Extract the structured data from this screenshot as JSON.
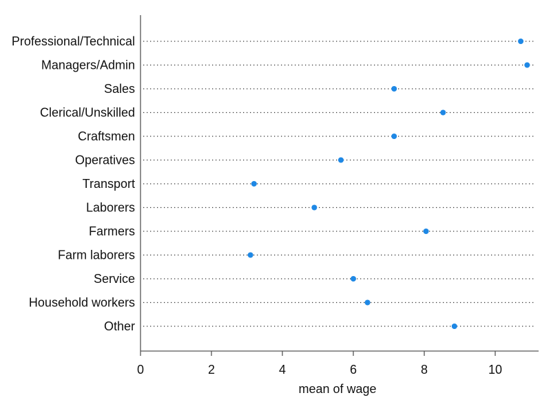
{
  "chart_data": {
    "type": "scatter",
    "title": "",
    "xlabel": "mean of wage",
    "ylabel": "",
    "xlim": [
      0,
      11.2
    ],
    "xticks": [
      0,
      2,
      4,
      6,
      8,
      10
    ],
    "grid": "dotted horizontal guide lines per category",
    "legend": "none",
    "marker_color": "#1E88E5",
    "categories": [
      "Professional/Technical",
      "Managers/Admin",
      "Sales",
      "Clerical/Unskilled",
      "Craftsmen",
      "Operatives",
      "Transport",
      "Laborers",
      "Farmers",
      "Farm laborers",
      "Service",
      "Household workers",
      "Other"
    ],
    "values": [
      10.72,
      10.9,
      7.15,
      8.53,
      7.15,
      5.65,
      3.2,
      4.9,
      8.05,
      3.1,
      6.0,
      6.4,
      8.85
    ]
  }
}
